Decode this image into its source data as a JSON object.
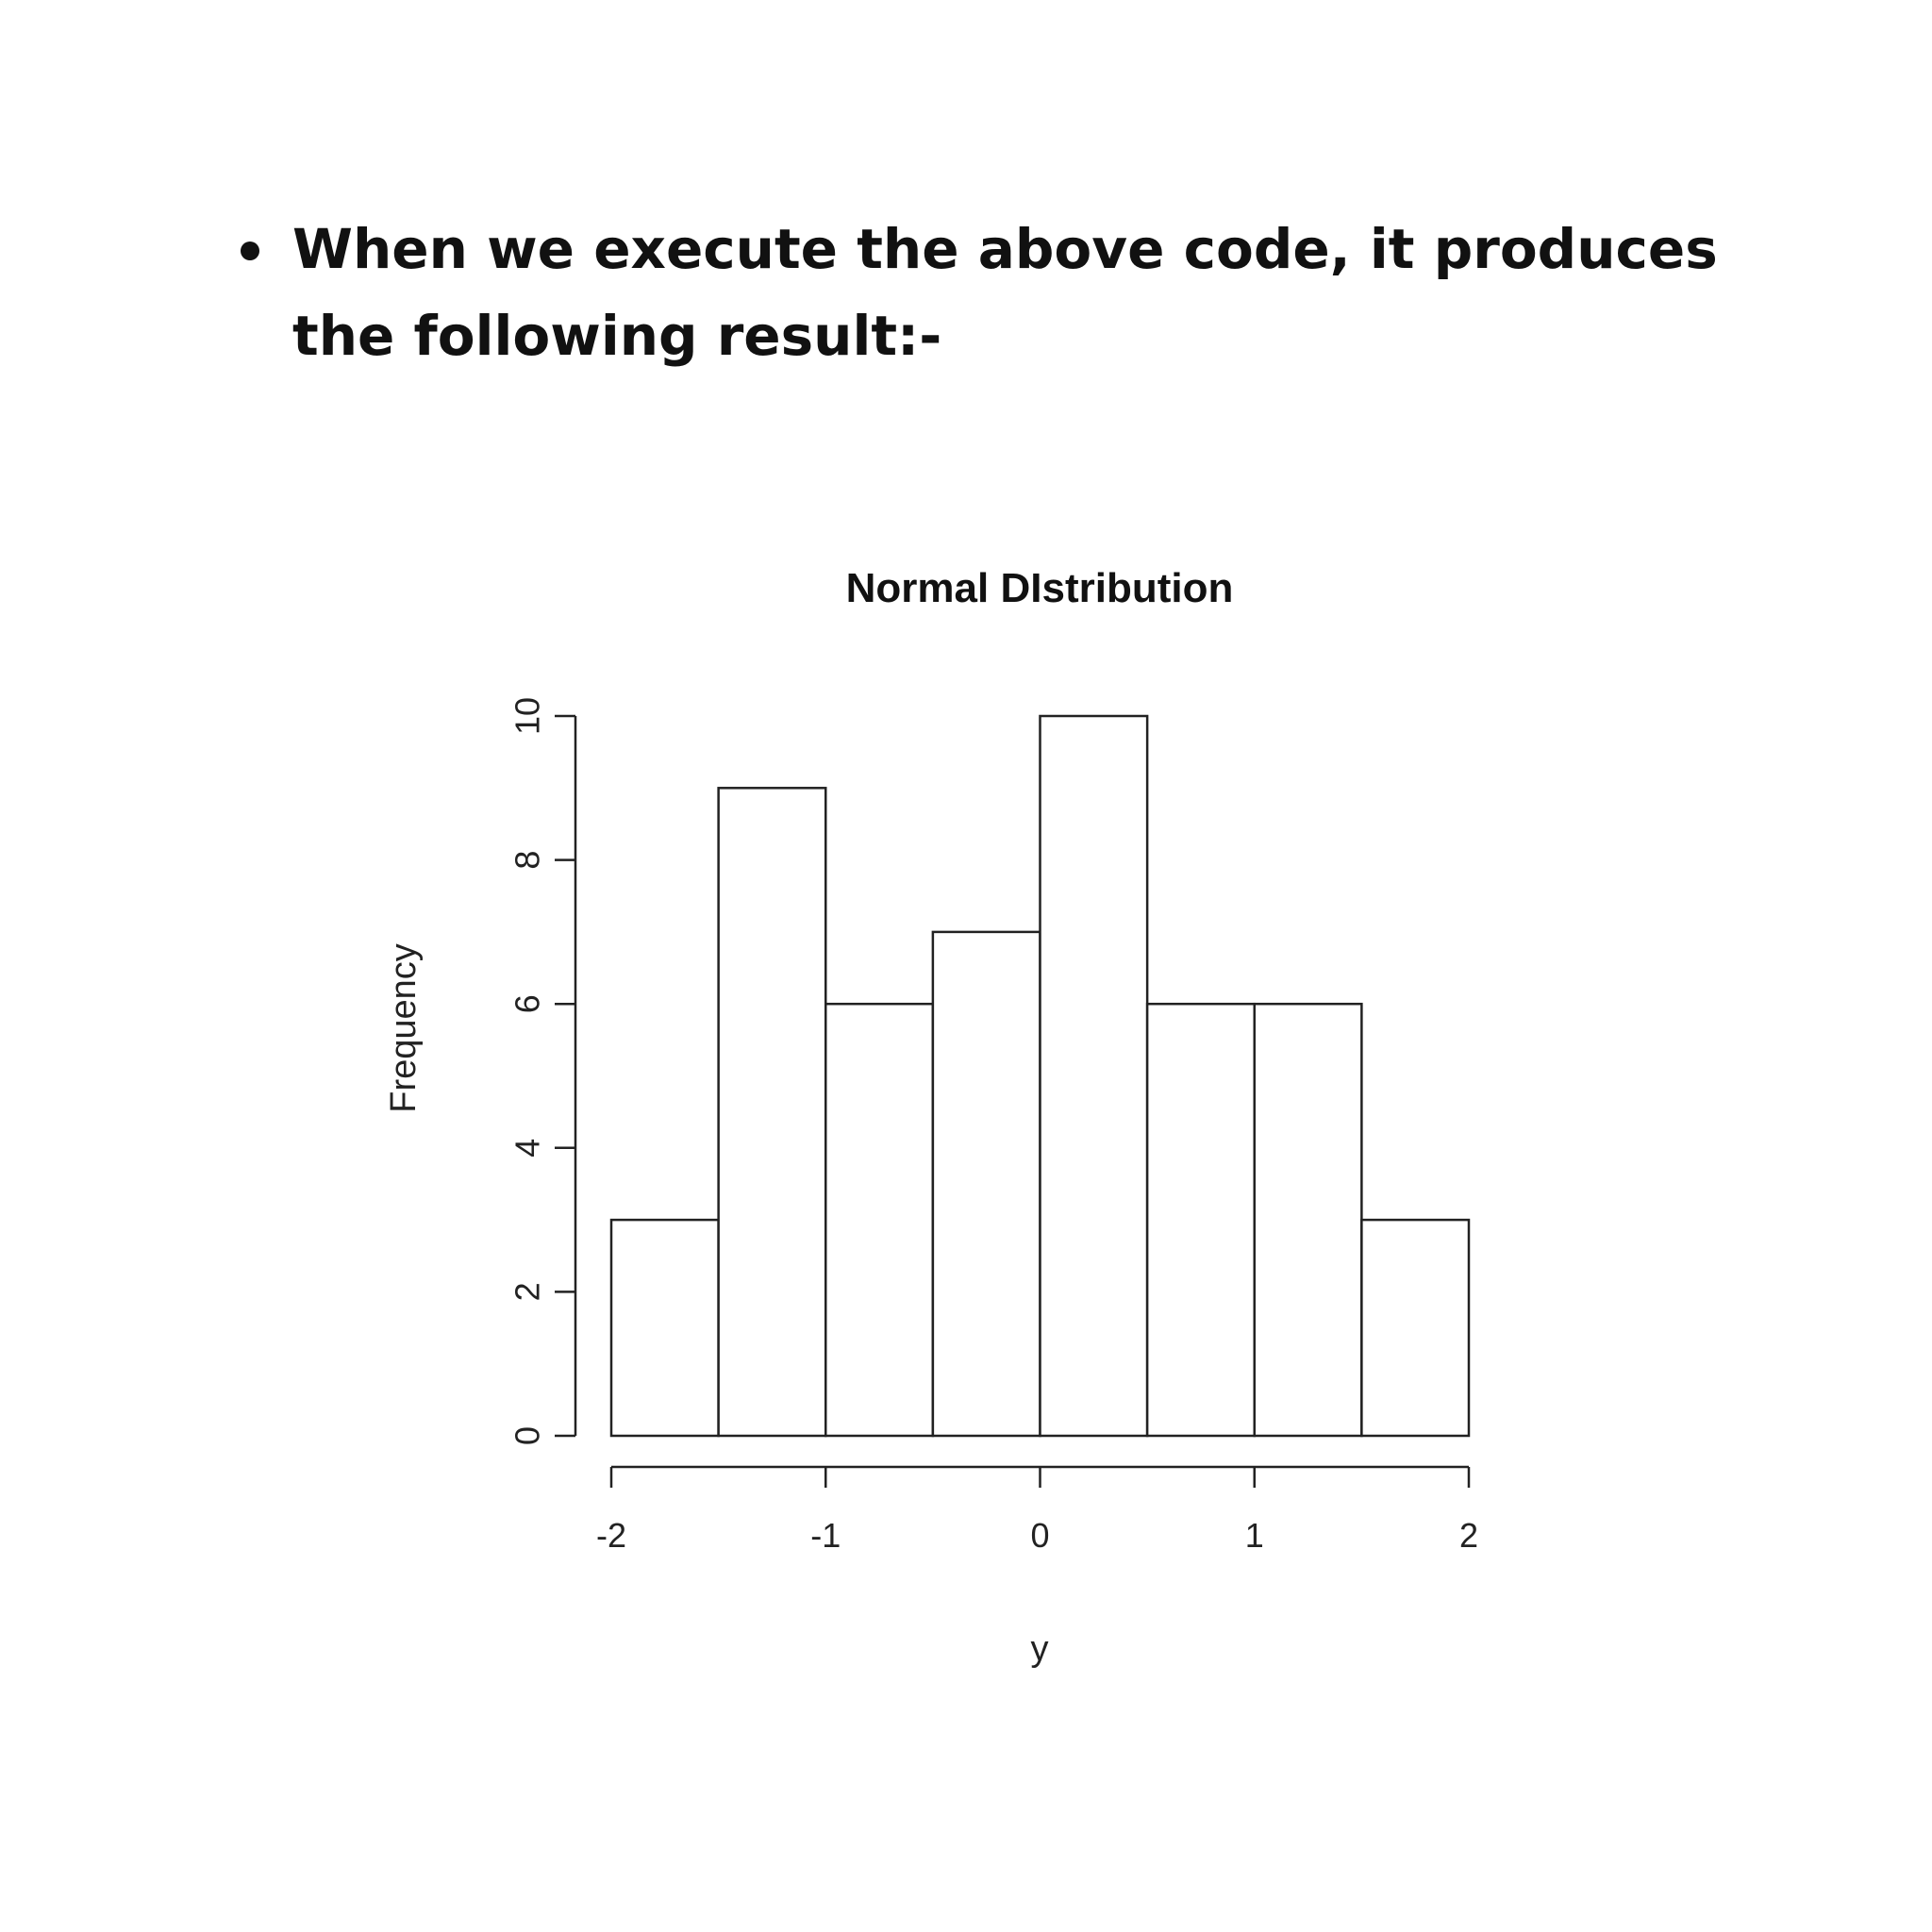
{
  "text": {
    "bullet": "When we execute the above code, it produces the following result:-"
  },
  "chart_data": {
    "type": "bar",
    "title": "Normal DIstribution",
    "xlabel": "y",
    "ylabel": "Frequency",
    "bin_edges": [
      -2,
      -1.5,
      -1,
      -0.5,
      0,
      0.5,
      1,
      1.5,
      2
    ],
    "values": [
      3,
      9,
      6,
      7,
      10,
      6,
      6,
      3
    ],
    "x_ticks": [
      -2,
      -1,
      0,
      1,
      2
    ],
    "x_tick_labels": [
      "-2",
      "-1",
      "0",
      "1",
      "2"
    ],
    "y_ticks": [
      0,
      2,
      4,
      6,
      8,
      10
    ],
    "y_tick_labels": [
      "0",
      "2",
      "4",
      "6",
      "8",
      "10"
    ],
    "xlim": [
      -2,
      2
    ],
    "ylim": [
      0,
      10
    ],
    "grid": false,
    "colors": {
      "bar_fill": "#ffffff",
      "stroke": "#222222"
    }
  }
}
